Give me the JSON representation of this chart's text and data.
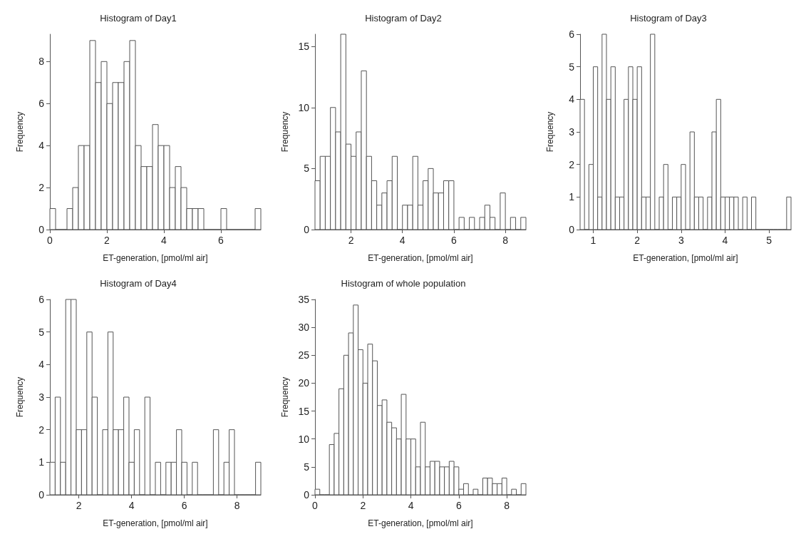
{
  "chart_data": [
    {
      "type": "histogram",
      "title": "Histogram of Day1",
      "xlabel": "ET-generation, [pmol/ml air]",
      "ylabel": "Frequency",
      "color": "#ffffff",
      "grid": false,
      "bins": [
        0,
        0.2,
        0.4,
        0.6,
        0.8,
        1.0,
        1.2,
        1.4,
        1.6,
        1.8,
        2.0,
        2.2,
        2.4,
        2.6,
        2.8,
        3.0,
        3.2,
        3.4,
        3.6,
        3.8,
        4.0,
        4.2,
        4.4,
        4.6,
        4.8,
        5.0,
        5.2,
        5.4,
        5.6,
        5.8,
        6.0,
        6.2,
        6.4,
        6.6,
        6.8,
        7.0,
        7.2,
        7.4
      ],
      "values": [
        1,
        0,
        0,
        1,
        2,
        4,
        4,
        9,
        7,
        8,
        6,
        7,
        7,
        8,
        9,
        4,
        3,
        3,
        5,
        4,
        4,
        2,
        3,
        2,
        1,
        1,
        1,
        0,
        0,
        0,
        1,
        0,
        0,
        0,
        0,
        0,
        1
      ],
      "xlim": [
        0,
        7.4
      ],
      "xticks": [
        0,
        2,
        4,
        6
      ],
      "ylim": [
        0,
        9.3
      ],
      "yticks": [
        0,
        2,
        4,
        6,
        8
      ]
    },
    {
      "type": "histogram",
      "title": "Histogram of Day2",
      "xlabel": "ET-generation, [pmol/ml air]",
      "ylabel": "Frequency",
      "color": "#ffffff",
      "grid": false,
      "bins": [
        0.6,
        0.8,
        1.0,
        1.2,
        1.4,
        1.6,
        1.8,
        2.0,
        2.2,
        2.4,
        2.6,
        2.8,
        3.0,
        3.2,
        3.4,
        3.6,
        3.8,
        4.0,
        4.2,
        4.4,
        4.6,
        4.8,
        5.0,
        5.2,
        5.4,
        5.6,
        5.8,
        6.0,
        6.2,
        6.4,
        6.6,
        6.8,
        7.0,
        7.2,
        7.4,
        7.6,
        7.8,
        8.0,
        8.2,
        8.4,
        8.6,
        8.8
      ],
      "values": [
        4,
        6,
        6,
        10,
        8,
        16,
        7,
        6,
        8,
        13,
        6,
        4,
        2,
        3,
        4,
        6,
        0,
        2,
        2,
        6,
        2,
        4,
        5,
        3,
        3,
        4,
        4,
        0,
        1,
        0,
        1,
        0,
        1,
        2,
        1,
        0,
        3,
        0,
        1,
        0,
        1
      ],
      "xlim": [
        0.6,
        8.8
      ],
      "xticks": [
        2,
        4,
        6,
        8
      ],
      "ylim": [
        0,
        16
      ],
      "yticks": [
        0,
        5,
        10,
        15
      ]
    },
    {
      "type": "histogram",
      "title": "Histogram of Day3",
      "xlabel": "ET-generation, [pmol/ml air]",
      "ylabel": "Frequency",
      "color": "#ffffff",
      "grid": false,
      "bins": [
        0.7,
        0.8,
        0.9,
        1.0,
        1.1,
        1.2,
        1.3,
        1.4,
        1.5,
        1.6,
        1.7,
        1.8,
        1.9,
        2.0,
        2.1,
        2.2,
        2.3,
        2.4,
        2.5,
        2.6,
        2.7,
        2.8,
        2.9,
        3.0,
        3.1,
        3.2,
        3.3,
        3.4,
        3.5,
        3.6,
        3.7,
        3.8,
        3.9,
        4.0,
        4.1,
        4.2,
        4.3,
        4.4,
        4.5,
        4.6,
        4.7,
        4.8,
        4.9,
        5.0,
        5.1,
        5.2,
        5.3,
        5.4,
        5.5
      ],
      "values": [
        4,
        0,
        2,
        5,
        1,
        6,
        4,
        5,
        1,
        1,
        4,
        5,
        4,
        5,
        1,
        1,
        6,
        0,
        1,
        2,
        0,
        1,
        1,
        2,
        0,
        3,
        1,
        1,
        0,
        1,
        3,
        4,
        1,
        1,
        1,
        1,
        0,
        1,
        0,
        1,
        0,
        0,
        0,
        0,
        0,
        0,
        0,
        1
      ],
      "xlim": [
        0.7,
        5.5
      ],
      "xticks": [
        1,
        2,
        3,
        4,
        5
      ],
      "ylim": [
        0,
        6
      ],
      "yticks": [
        0,
        1,
        2,
        3,
        4,
        5,
        6
      ]
    },
    {
      "type": "histogram",
      "title": "Histogram of Day4",
      "xlabel": "ET-generation, [pmol/ml air]",
      "ylabel": "Frequency",
      "color": "#ffffff",
      "grid": false,
      "bins": [
        0.9,
        1.1,
        1.3,
        1.5,
        1.7,
        1.9,
        2.1,
        2.3,
        2.5,
        2.7,
        2.9,
        3.1,
        3.3,
        3.5,
        3.7,
        3.9,
        4.1,
        4.3,
        4.5,
        4.7,
        4.9,
        5.1,
        5.3,
        5.5,
        5.7,
        5.9,
        6.1,
        6.3,
        6.5,
        6.7,
        6.9,
        7.1,
        7.3,
        7.5,
        7.7,
        7.9,
        8.1,
        8.3,
        8.5,
        8.7,
        8.9
      ],
      "values": [
        1,
        3,
        1,
        6,
        6,
        2,
        2,
        5,
        3,
        0,
        2,
        5,
        2,
        2,
        3,
        1,
        2,
        0,
        3,
        0,
        1,
        0,
        1,
        1,
        2,
        1,
        0,
        1,
        0,
        0,
        0,
        2,
        0,
        1,
        2,
        0,
        0,
        0,
        0,
        1
      ],
      "xlim": [
        0.9,
        8.9
      ],
      "xticks": [
        2,
        4,
        6,
        8
      ],
      "ylim": [
        0,
        6
      ],
      "yticks": [
        0,
        1,
        2,
        3,
        4,
        5,
        6
      ]
    },
    {
      "type": "histogram",
      "title": "Histogram of whole population",
      "xlabel": "ET-generation, [pmol/ml air]",
      "ylabel": "Frequency",
      "color": "#ffffff",
      "grid": false,
      "bins": [
        0,
        0.2,
        0.4,
        0.6,
        0.8,
        1.0,
        1.2,
        1.4,
        1.6,
        1.8,
        2.0,
        2.2,
        2.4,
        2.6,
        2.8,
        3.0,
        3.2,
        3.4,
        3.6,
        3.8,
        4.0,
        4.2,
        4.4,
        4.6,
        4.8,
        5.0,
        5.2,
        5.4,
        5.6,
        5.8,
        6.0,
        6.2,
        6.4,
        6.6,
        6.8,
        7.0,
        7.2,
        7.4,
        7.6,
        7.8,
        8.0,
        8.2,
        8.4,
        8.6,
        8.8
      ],
      "values": [
        1,
        0,
        0,
        9,
        11,
        19,
        25,
        29,
        34,
        26,
        20,
        27,
        24,
        16,
        17,
        13,
        12,
        10,
        18,
        10,
        10,
        5,
        13,
        5,
        6,
        6,
        5,
        5,
        6,
        5,
        1,
        2,
        0,
        1,
        0,
        3,
        3,
        2,
        2,
        3,
        0,
        1,
        0,
        2
      ],
      "xlim": [
        0,
        8.8
      ],
      "xticks": [
        0,
        2,
        4,
        6,
        8
      ],
      "ylim": [
        0,
        35
      ],
      "yticks": [
        0,
        5,
        10,
        15,
        20,
        25,
        30,
        35
      ]
    }
  ]
}
